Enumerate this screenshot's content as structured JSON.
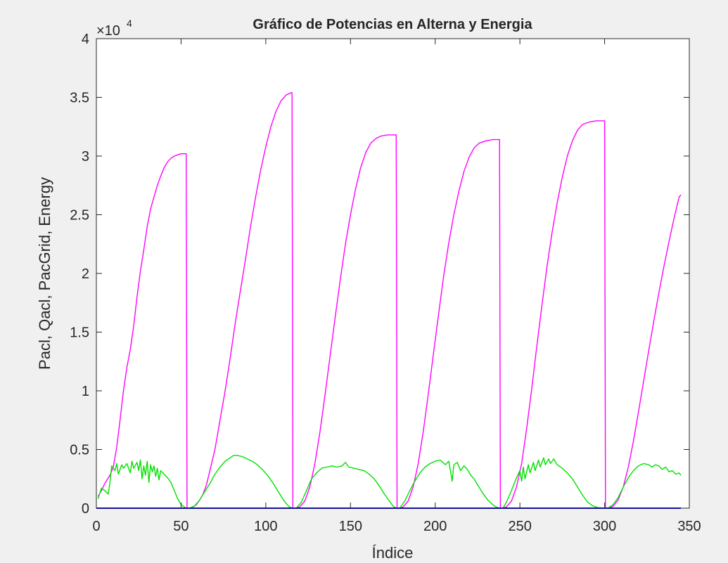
{
  "chart_data": {
    "type": "line",
    "title": "Gráfico de Potencias en Alterna y Energia",
    "xlabel": "Índice",
    "ylabel": "Pacl, Qacl, PacGrid, Energy",
    "exponent_label": {
      "base": "×10",
      "power": "4"
    },
    "xlim": [
      0,
      350
    ],
    "ylim": [
      0,
      40000
    ],
    "xticks": [
      0,
      50,
      100,
      150,
      200,
      250,
      300,
      350
    ],
    "yticks": [
      0,
      5000,
      10000,
      15000,
      20000,
      25000,
      30000,
      35000,
      40000
    ],
    "xtick_labels": [
      "0",
      "50",
      "100",
      "150",
      "200",
      "250",
      "300",
      "350"
    ],
    "ytick_labels": [
      "0",
      "0.5",
      "1",
      "1.5",
      "2",
      "2.5",
      "3",
      "3.5",
      "4"
    ],
    "grid": false,
    "series": [
      {
        "color": "#ff00ff",
        "points": [
          [
            1,
            1000
          ],
          [
            3,
            1500
          ],
          [
            5,
            2100
          ],
          [
            8,
            2800
          ],
          [
            10,
            3500
          ],
          [
            12,
            5200
          ],
          [
            14,
            7500
          ],
          [
            16,
            10000
          ],
          [
            18,
            12000
          ],
          [
            20,
            13500
          ],
          [
            22,
            15500
          ],
          [
            24,
            18000
          ],
          [
            26,
            20200
          ],
          [
            28,
            22000
          ],
          [
            30,
            24000
          ],
          [
            32,
            25500
          ],
          [
            34,
            26500
          ],
          [
            36,
            27500
          ],
          [
            38,
            28300
          ],
          [
            40,
            29000
          ],
          [
            42,
            29500
          ],
          [
            44,
            29800
          ],
          [
            46,
            30000
          ],
          [
            48,
            30100
          ],
          [
            50,
            30200
          ],
          [
            52,
            30200
          ],
          [
            53,
            30200
          ],
          [
            53.5,
            0
          ],
          [
            55,
            0
          ],
          [
            57,
            100
          ],
          [
            59,
            300
          ],
          [
            61,
            700
          ],
          [
            63,
            1200
          ],
          [
            65,
            2000
          ],
          [
            67,
            3200
          ],
          [
            70,
            5000
          ],
          [
            73,
            7500
          ],
          [
            76,
            10000
          ],
          [
            79,
            12800
          ],
          [
            82,
            15800
          ],
          [
            85,
            18500
          ],
          [
            88,
            21200
          ],
          [
            91,
            24000
          ],
          [
            94,
            26500
          ],
          [
            97,
            28800
          ],
          [
            100,
            30800
          ],
          [
            103,
            32500
          ],
          [
            106,
            33800
          ],
          [
            109,
            34700
          ],
          [
            112,
            35200
          ],
          [
            115,
            35400
          ],
          [
            115.5,
            35400
          ],
          [
            116,
            0
          ],
          [
            118,
            0
          ],
          [
            120,
            100
          ],
          [
            123,
            600
          ],
          [
            126,
            1800
          ],
          [
            129,
            3800
          ],
          [
            132,
            6500
          ],
          [
            135,
            9700
          ],
          [
            138,
            13000
          ],
          [
            141,
            16300
          ],
          [
            144,
            19500
          ],
          [
            147,
            22500
          ],
          [
            150,
            25000
          ],
          [
            153,
            27200
          ],
          [
            156,
            29000
          ],
          [
            159,
            30300
          ],
          [
            162,
            31100
          ],
          [
            165,
            31500
          ],
          [
            168,
            31700
          ],
          [
            172,
            31800
          ],
          [
            176,
            31800
          ],
          [
            177,
            31800
          ],
          [
            177.5,
            0
          ],
          [
            179,
            0
          ],
          [
            181,
            100
          ],
          [
            184,
            600
          ],
          [
            187,
            1800
          ],
          [
            190,
            3800
          ],
          [
            193,
            6600
          ],
          [
            196,
            9800
          ],
          [
            199,
            13200
          ],
          [
            202,
            16500
          ],
          [
            205,
            19800
          ],
          [
            208,
            22600
          ],
          [
            211,
            25000
          ],
          [
            214,
            27000
          ],
          [
            217,
            28700
          ],
          [
            220,
            29900
          ],
          [
            223,
            30700
          ],
          [
            226,
            31100
          ],
          [
            230,
            31300
          ],
          [
            234,
            31400
          ],
          [
            238,
            31400
          ],
          [
            238.5,
            0
          ],
          [
            240,
            0
          ],
          [
            242,
            100
          ],
          [
            245,
            600
          ],
          [
            248,
            1800
          ],
          [
            251,
            3800
          ],
          [
            254,
            6800
          ],
          [
            257,
            10200
          ],
          [
            260,
            13800
          ],
          [
            263,
            17300
          ],
          [
            266,
            20600
          ],
          [
            269,
            23500
          ],
          [
            272,
            26000
          ],
          [
            275,
            28200
          ],
          [
            278,
            30000
          ],
          [
            281,
            31300
          ],
          [
            284,
            32200
          ],
          [
            287,
            32700
          ],
          [
            291,
            32900
          ],
          [
            295,
            33000
          ],
          [
            299,
            33000
          ],
          [
            300,
            33000
          ],
          [
            300.5,
            0
          ],
          [
            302,
            0
          ],
          [
            305,
            150
          ],
          [
            308,
            700
          ],
          [
            311,
            1800
          ],
          [
            314,
            3500
          ],
          [
            317,
            5700
          ],
          [
            320,
            8200
          ],
          [
            323,
            10800
          ],
          [
            326,
            13400
          ],
          [
            329,
            15900
          ],
          [
            332,
            18300
          ],
          [
            335,
            20600
          ],
          [
            338,
            22700
          ],
          [
            341,
            24700
          ],
          [
            344,
            26500
          ],
          [
            345,
            26700
          ]
        ]
      },
      {
        "color": "#00e000",
        "points": [
          [
            1,
            800
          ],
          [
            3,
            1700
          ],
          [
            5,
            1500
          ],
          [
            7,
            1200
          ],
          [
            8,
            2200
          ],
          [
            9,
            3600
          ],
          [
            11,
            3200
          ],
          [
            12,
            3800
          ],
          [
            13,
            2900
          ],
          [
            15,
            3700
          ],
          [
            16,
            3400
          ],
          [
            18,
            3800
          ],
          [
            20,
            3000
          ],
          [
            21,
            4000
          ],
          [
            22,
            3400
          ],
          [
            24,
            3900
          ],
          [
            25,
            3200
          ],
          [
            26,
            4100
          ],
          [
            27,
            2500
          ],
          [
            28,
            3600
          ],
          [
            29,
            2800
          ],
          [
            30,
            4000
          ],
          [
            31,
            2200
          ],
          [
            32,
            3700
          ],
          [
            33,
            3100
          ],
          [
            34,
            3600
          ],
          [
            35,
            2700
          ],
          [
            36,
            3400
          ],
          [
            37,
            2400
          ],
          [
            38,
            3200
          ],
          [
            40,
            2900
          ],
          [
            42,
            2600
          ],
          [
            44,
            2200
          ],
          [
            46,
            1500
          ],
          [
            48,
            800
          ],
          [
            50,
            300
          ],
          [
            52,
            100
          ],
          [
            53,
            0
          ],
          [
            55,
            0
          ],
          [
            58,
            200
          ],
          [
            61,
            700
          ],
          [
            64,
            1400
          ],
          [
            67,
            2100
          ],
          [
            70,
            2900
          ],
          [
            73,
            3500
          ],
          [
            76,
            4000
          ],
          [
            79,
            4300
          ],
          [
            81,
            4500
          ],
          [
            83,
            4500
          ],
          [
            86,
            4400
          ],
          [
            89,
            4200
          ],
          [
            92,
            4000
          ],
          [
            95,
            3700
          ],
          [
            98,
            3300
          ],
          [
            101,
            2800
          ],
          [
            104,
            2200
          ],
          [
            107,
            1500
          ],
          [
            110,
            800
          ],
          [
            112,
            400
          ],
          [
            114,
            100
          ],
          [
            116,
            0
          ],
          [
            118,
            0
          ],
          [
            121,
            500
          ],
          [
            124,
            1500
          ],
          [
            127,
            2500
          ],
          [
            130,
            3000
          ],
          [
            133,
            3400
          ],
          [
            136,
            3500
          ],
          [
            139,
            3600
          ],
          [
            142,
            3500
          ],
          [
            145,
            3600
          ],
          [
            147,
            3900
          ],
          [
            149,
            3500
          ],
          [
            152,
            3400
          ],
          [
            155,
            3300
          ],
          [
            158,
            3200
          ],
          [
            161,
            2900
          ],
          [
            164,
            2500
          ],
          [
            167,
            1900
          ],
          [
            170,
            1200
          ],
          [
            173,
            600
          ],
          [
            175,
            200
          ],
          [
            177,
            0
          ],
          [
            179,
            0
          ],
          [
            182,
            600
          ],
          [
            185,
            1500
          ],
          [
            188,
            2300
          ],
          [
            191,
            3000
          ],
          [
            194,
            3500
          ],
          [
            197,
            3800
          ],
          [
            200,
            4000
          ],
          [
            203,
            4100
          ],
          [
            206,
            3700
          ],
          [
            208,
            4000
          ],
          [
            209,
            3200
          ],
          [
            210,
            2300
          ],
          [
            211,
            3700
          ],
          [
            213,
            3900
          ],
          [
            215,
            3200
          ],
          [
            217,
            3600
          ],
          [
            219,
            3300
          ],
          [
            221,
            2800
          ],
          [
            223,
            2500
          ],
          [
            225,
            2000
          ],
          [
            228,
            1300
          ],
          [
            231,
            700
          ],
          [
            234,
            300
          ],
          [
            236,
            100
          ],
          [
            238,
            0
          ],
          [
            240,
            0
          ],
          [
            242,
            500
          ],
          [
            245,
            1500
          ],
          [
            248,
            2600
          ],
          [
            250,
            3200
          ],
          [
            251,
            2300
          ],
          [
            252,
            3500
          ],
          [
            253,
            2500
          ],
          [
            255,
            3700
          ],
          [
            256,
            3000
          ],
          [
            258,
            3900
          ],
          [
            259,
            3200
          ],
          [
            261,
            4100
          ],
          [
            262,
            3500
          ],
          [
            264,
            4300
          ],
          [
            265,
            3700
          ],
          [
            267,
            4200
          ],
          [
            268,
            3800
          ],
          [
            270,
            4200
          ],
          [
            272,
            3700
          ],
          [
            275,
            3400
          ],
          [
            278,
            3000
          ],
          [
            281,
            2500
          ],
          [
            284,
            1800
          ],
          [
            287,
            1100
          ],
          [
            290,
            500
          ],
          [
            293,
            200
          ],
          [
            296,
            50
          ],
          [
            300,
            0
          ],
          [
            302,
            0
          ],
          [
            305,
            300
          ],
          [
            308,
            900
          ],
          [
            311,
            1800
          ],
          [
            314,
            2600
          ],
          [
            317,
            3200
          ],
          [
            320,
            3600
          ],
          [
            323,
            3800
          ],
          [
            326,
            3700
          ],
          [
            328,
            3500
          ],
          [
            330,
            3700
          ],
          [
            332,
            3600
          ],
          [
            334,
            3300
          ],
          [
            336,
            3500
          ],
          [
            338,
            3100
          ],
          [
            340,
            3200
          ],
          [
            342,
            2900
          ],
          [
            344,
            3000
          ],
          [
            345,
            2800
          ]
        ]
      },
      {
        "color": "#0000ff",
        "points": [
          [
            0,
            0
          ],
          [
            345,
            0
          ]
        ]
      }
    ]
  }
}
